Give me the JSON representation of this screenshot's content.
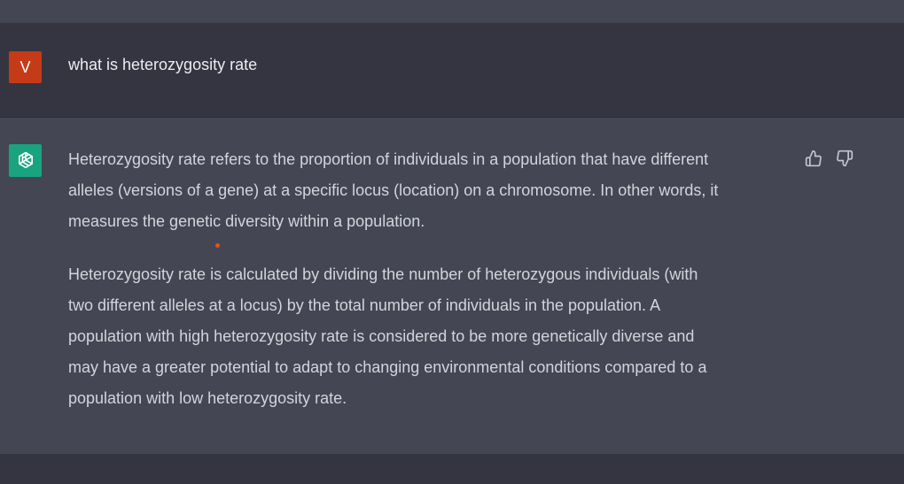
{
  "user_message": {
    "avatar_letter": "V",
    "text": "what is heterozygosity rate"
  },
  "assistant_message": {
    "paragraphs": [
      {
        "lines": [
          "Heterozygosity rate refers to the proportion of individuals in a population that have different",
          "alleles (versions of a gene) at a specific locus (location) on a chromosome. In other words, it",
          "measures the genetic diversity within a population."
        ]
      },
      {
        "lines": [
          "Heterozygosity rate is calculated by dividing the number of heterozygous individuals (with",
          "two different alleles at a locus) by the total number of individuals in the population. A",
          "population with high heterozygosity rate is considered to be more genetically diverse and",
          "may have a greater potential to adapt to changing environmental conditions compared to a",
          "population with low heterozygosity rate."
        ]
      }
    ],
    "feedback_icons": [
      "thumbs-up-icon",
      "thumbs-down-icon"
    ]
  },
  "colors": {
    "background_dark": "#343541",
    "background_assistant": "#444654",
    "user_avatar": "#c63b17",
    "assistant_avatar": "#19a37f",
    "cursor_dot": "#e3531f"
  }
}
